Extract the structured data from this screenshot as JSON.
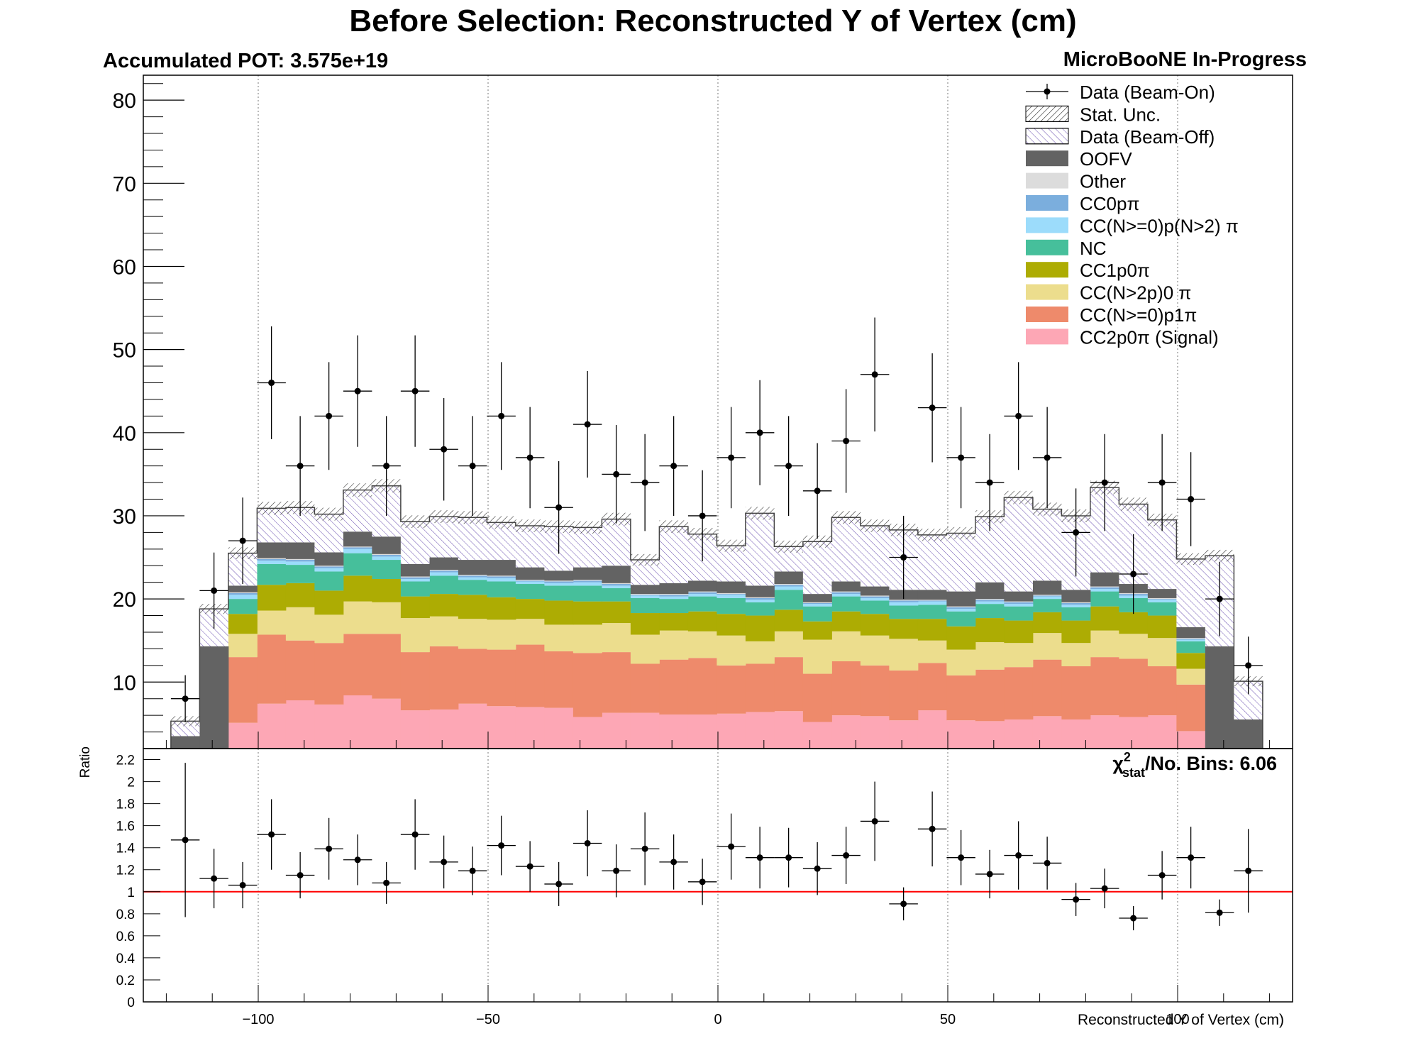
{
  "chart_data": [
    {
      "type": "stacked-bar",
      "title": "Before Selection: Reconstructed Y of Vertex (cm)",
      "pot_label": "Accumulated POT: 3.575e+19",
      "experiment_label": "MicroBooNE In-Progress",
      "xlim": [
        -125,
        125
      ],
      "ylim": [
        2,
        83
      ],
      "y_ticks": [
        10,
        20,
        30,
        40,
        50,
        60,
        70,
        80
      ],
      "grid": "vertical dotted at major x ticks",
      "legend_position": "top-right",
      "bin_edges": [
        -119,
        -112.75,
        -106.5,
        -100.25,
        -94,
        -87.75,
        -81.5,
        -75.25,
        -69,
        -62.75,
        -56.5,
        -50.25,
        -44,
        -37.75,
        -31.5,
        -25.25,
        -19,
        -12.75,
        -6.5,
        -0.25,
        6,
        12.25,
        18.5,
        24.75,
        31,
        37.25,
        43.5,
        49.75,
        56,
        62.25,
        68.5,
        74.75,
        81,
        87.25,
        93.5,
        99.75,
        106,
        112.25,
        118.5
      ],
      "stack_order": [
        "CC2p0π (Signal)",
        "CC(N>=0)p1π",
        "CC(N>2p)0π",
        "CC1p0π",
        "NC",
        "CC(N>=0)p(N>2)π",
        "CC0pπ",
        "Other",
        "OOFV",
        "Data (Beam-Off)"
      ],
      "stack_colors": [
        "#fda7b5",
        "#ee8a6b",
        "#ecdd8d",
        "#adac03",
        "#46bf9b",
        "#9cdcfb",
        "#7baedd",
        "#dcdcdc",
        "#636363",
        "#ffffff"
      ],
      "series": [
        {
          "name": "CC2p0π (Signal)",
          "values": [
            0,
            0,
            5.1,
            7.4,
            7.8,
            7.3,
            8.4,
            8.0,
            6.6,
            6.7,
            7.4,
            7.1,
            7.0,
            6.9,
            5.8,
            6.3,
            6.3,
            6.1,
            6.1,
            6.2,
            6.4,
            6.5,
            5.2,
            6.0,
            5.9,
            5.4,
            6.6,
            5.4,
            5.3,
            5.5,
            5.9,
            5.5,
            6.0,
            5.8,
            6.0,
            4.1,
            0,
            0
          ]
        },
        {
          "name": "CC(N>=0)p1π",
          "values": [
            0,
            0,
            7.9,
            8.3,
            7.2,
            7.4,
            7.4,
            7.8,
            7.0,
            7.6,
            6.6,
            6.8,
            7.5,
            6.8,
            7.7,
            7.3,
            5.9,
            6.6,
            6.8,
            5.8,
            5.8,
            6.5,
            5.8,
            6.5,
            6.1,
            6.0,
            5.7,
            5.4,
            6.2,
            6.3,
            6.8,
            6.4,
            7.0,
            7.0,
            5.9,
            5.6,
            0,
            0
          ]
        },
        {
          "name": "CC(N>2p)0π",
          "values": [
            0,
            0,
            2.8,
            2.9,
            4.0,
            3.4,
            3.9,
            3.8,
            4.1,
            3.6,
            3.6,
            3.6,
            3.1,
            3.2,
            3.4,
            3.5,
            3.5,
            3.5,
            3.2,
            3.6,
            2.7,
            3.1,
            4.1,
            3.6,
            3.6,
            3.8,
            2.7,
            3.1,
            3.3,
            2.9,
            3.2,
            2.8,
            3.2,
            3.0,
            3.4,
            1.9,
            0,
            0
          ]
        },
        {
          "name": "CC1p0π",
          "values": [
            0,
            0,
            2.4,
            3.1,
            2.9,
            2.9,
            3.1,
            2.8,
            2.6,
            2.7,
            2.9,
            2.7,
            2.4,
            2.9,
            2.8,
            2.6,
            2.6,
            2.1,
            2.4,
            2.6,
            3.1,
            2.6,
            2.2,
            2.4,
            2.6,
            2.4,
            2.6,
            2.8,
            2.9,
            2.7,
            2.5,
            2.7,
            2.9,
            2.6,
            2.7,
            1.9,
            0,
            0
          ]
        },
        {
          "name": "NC",
          "values": [
            0,
            0,
            1.8,
            2.5,
            2.2,
            2.3,
            2.7,
            2.3,
            1.8,
            2.2,
            1.8,
            1.9,
            1.8,
            1.8,
            1.9,
            1.6,
            1.8,
            1.7,
            1.8,
            1.9,
            1.6,
            2.4,
            1.8,
            1.8,
            1.6,
            1.6,
            1.7,
            1.8,
            1.7,
            1.7,
            1.6,
            1.6,
            1.8,
            1.7,
            1.6,
            1.4,
            0,
            0
          ]
        },
        {
          "name": "CC(N>=0)p(N>2)π",
          "values": [
            0,
            0,
            0.5,
            0.4,
            0.4,
            0.4,
            0.5,
            0.4,
            0.3,
            0.4,
            0.3,
            0.4,
            0.3,
            0.3,
            0.4,
            0.3,
            0.3,
            0.3,
            0.3,
            0.4,
            0.3,
            0.4,
            0.3,
            0.3,
            0.3,
            0.4,
            0.4,
            0.3,
            0.3,
            0.3,
            0.3,
            0.3,
            0.3,
            0.3,
            0.3,
            0.2,
            0,
            0
          ]
        },
        {
          "name": "CC0pπ",
          "values": [
            0,
            0,
            0.2,
            0.2,
            0.2,
            0.2,
            0.2,
            0.2,
            0.2,
            0.2,
            0.2,
            0.2,
            0.1,
            0.2,
            0.2,
            0.2,
            0.1,
            0.2,
            0.2,
            0.1,
            0.2,
            0.2,
            0.1,
            0.2,
            0.2,
            0.2,
            0.1,
            0.2,
            0.2,
            0.2,
            0.1,
            0.2,
            0.2,
            0.2,
            0.1,
            0.1,
            0,
            0
          ]
        },
        {
          "name": "Other",
          "values": [
            0,
            0,
            0.1,
            0.1,
            0.1,
            0.1,
            0.1,
            0.1,
            0.1,
            0.1,
            0.1,
            0.1,
            0.1,
            0.1,
            0.1,
            0.1,
            0.1,
            0.1,
            0.1,
            0.1,
            0.1,
            0.1,
            0.1,
            0.1,
            0.1,
            0.1,
            0.1,
            0.1,
            0.1,
            0.1,
            0.1,
            0.1,
            0.1,
            0.1,
            0.1,
            0.1,
            0,
            0
          ]
        },
        {
          "name": "OOFV",
          "values": [
            3.5,
            14.3,
            0.8,
            1.9,
            2.0,
            1.6,
            1.8,
            2.1,
            1.5,
            1.5,
            1.8,
            1.9,
            1.5,
            1.2,
            1.5,
            2.1,
            1.1,
            1.3,
            1.3,
            1.4,
            1.4,
            1.5,
            1.0,
            1.2,
            1.1,
            1.2,
            1.2,
            1.8,
            2.0,
            1.2,
            1.7,
            1.5,
            1.7,
            1.1,
            1.1,
            1.3,
            14.3,
            5.5
          ]
        },
        {
          "name": "Data (Beam-Off)",
          "values": [
            1.8,
            4.5,
            3.9,
            4.1,
            4.2,
            4.6,
            5.0,
            6.1,
            5.1,
            4.9,
            5.1,
            4.5,
            5.0,
            5.3,
            4.8,
            5.6,
            3.0,
            6.8,
            5.6,
            4.3,
            8.7,
            3.0,
            6.3,
            7.7,
            7.3,
            7.2,
            6.6,
            7.0,
            7.9,
            11.3,
            8.6,
            8.9,
            10.2,
            9.6,
            8.3,
            8.2,
            10.9,
            4.6
          ]
        }
      ],
      "data_beam_on": {
        "name": "Data (Beam-On)",
        "values": [
          8,
          21,
          27,
          46,
          36,
          42,
          45,
          36,
          45,
          38,
          36,
          42,
          37,
          31,
          41,
          35,
          34,
          36,
          30,
          37,
          40,
          36,
          33,
          39,
          47,
          25,
          43,
          37,
          34,
          42,
          37,
          28,
          34,
          23,
          34,
          32,
          20,
          12
        ]
      },
      "legend": [
        "Data (Beam-On)",
        "Stat. Unc.",
        "Data (Beam-Off)",
        "OOFV",
        "Other",
        "CC0pπ",
        "CC(N>=0)p(N>2) π",
        "NC",
        "CC1p0π",
        "CC(N>2p)0 π",
        "CC(N>=0)p1π",
        "CC2p0π (Signal)"
      ]
    },
    {
      "type": "scatter",
      "ylabel": "Ratio",
      "xlabel": "Reconstructed Y of Vertex (cm)",
      "annotation": "χ²stat/No. Bins: 6.06",
      "chi_label": {
        "sym": "χ",
        "sup": "2",
        "sub": "stat",
        "rest": "/No. Bins: 6.06"
      },
      "xlim": [
        -125,
        125
      ],
      "ylim": [
        0,
        2.3
      ],
      "x_ticks": [
        -100,
        -50,
        0,
        50,
        100
      ],
      "x_tick_labels": [
        "−100",
        "−50",
        "0",
        "50",
        "100"
      ],
      "y_ticks": [
        0,
        0.2,
        0.4,
        0.6,
        0.8,
        1,
        1.2,
        1.4,
        1.6,
        1.8,
        2,
        2.2
      ],
      "reference_line": 1,
      "reference_color": "#ff0000",
      "values": [
        1.47,
        1.12,
        1.06,
        1.52,
        1.15,
        1.39,
        1.29,
        1.08,
        1.52,
        1.27,
        1.19,
        1.42,
        1.23,
        1.07,
        1.44,
        1.19,
        1.39,
        1.27,
        1.09,
        1.41,
        1.31,
        1.31,
        1.21,
        1.33,
        1.64,
        0.89,
        1.57,
        1.31,
        1.16,
        1.33,
        1.26,
        0.93,
        1.03,
        0.76,
        1.15,
        1.31,
        0.81,
        1.19
      ],
      "errors": [
        0.7,
        0.27,
        0.21,
        0.32,
        0.21,
        0.28,
        0.23,
        0.19,
        0.32,
        0.24,
        0.22,
        0.27,
        0.23,
        0.2,
        0.3,
        0.24,
        0.33,
        0.25,
        0.21,
        0.3,
        0.28,
        0.27,
        0.24,
        0.26,
        0.36,
        0.15,
        0.34,
        0.25,
        0.22,
        0.31,
        0.24,
        0.15,
        0.18,
        0.11,
        0.22,
        0.28,
        0.12,
        0.38
      ]
    }
  ]
}
